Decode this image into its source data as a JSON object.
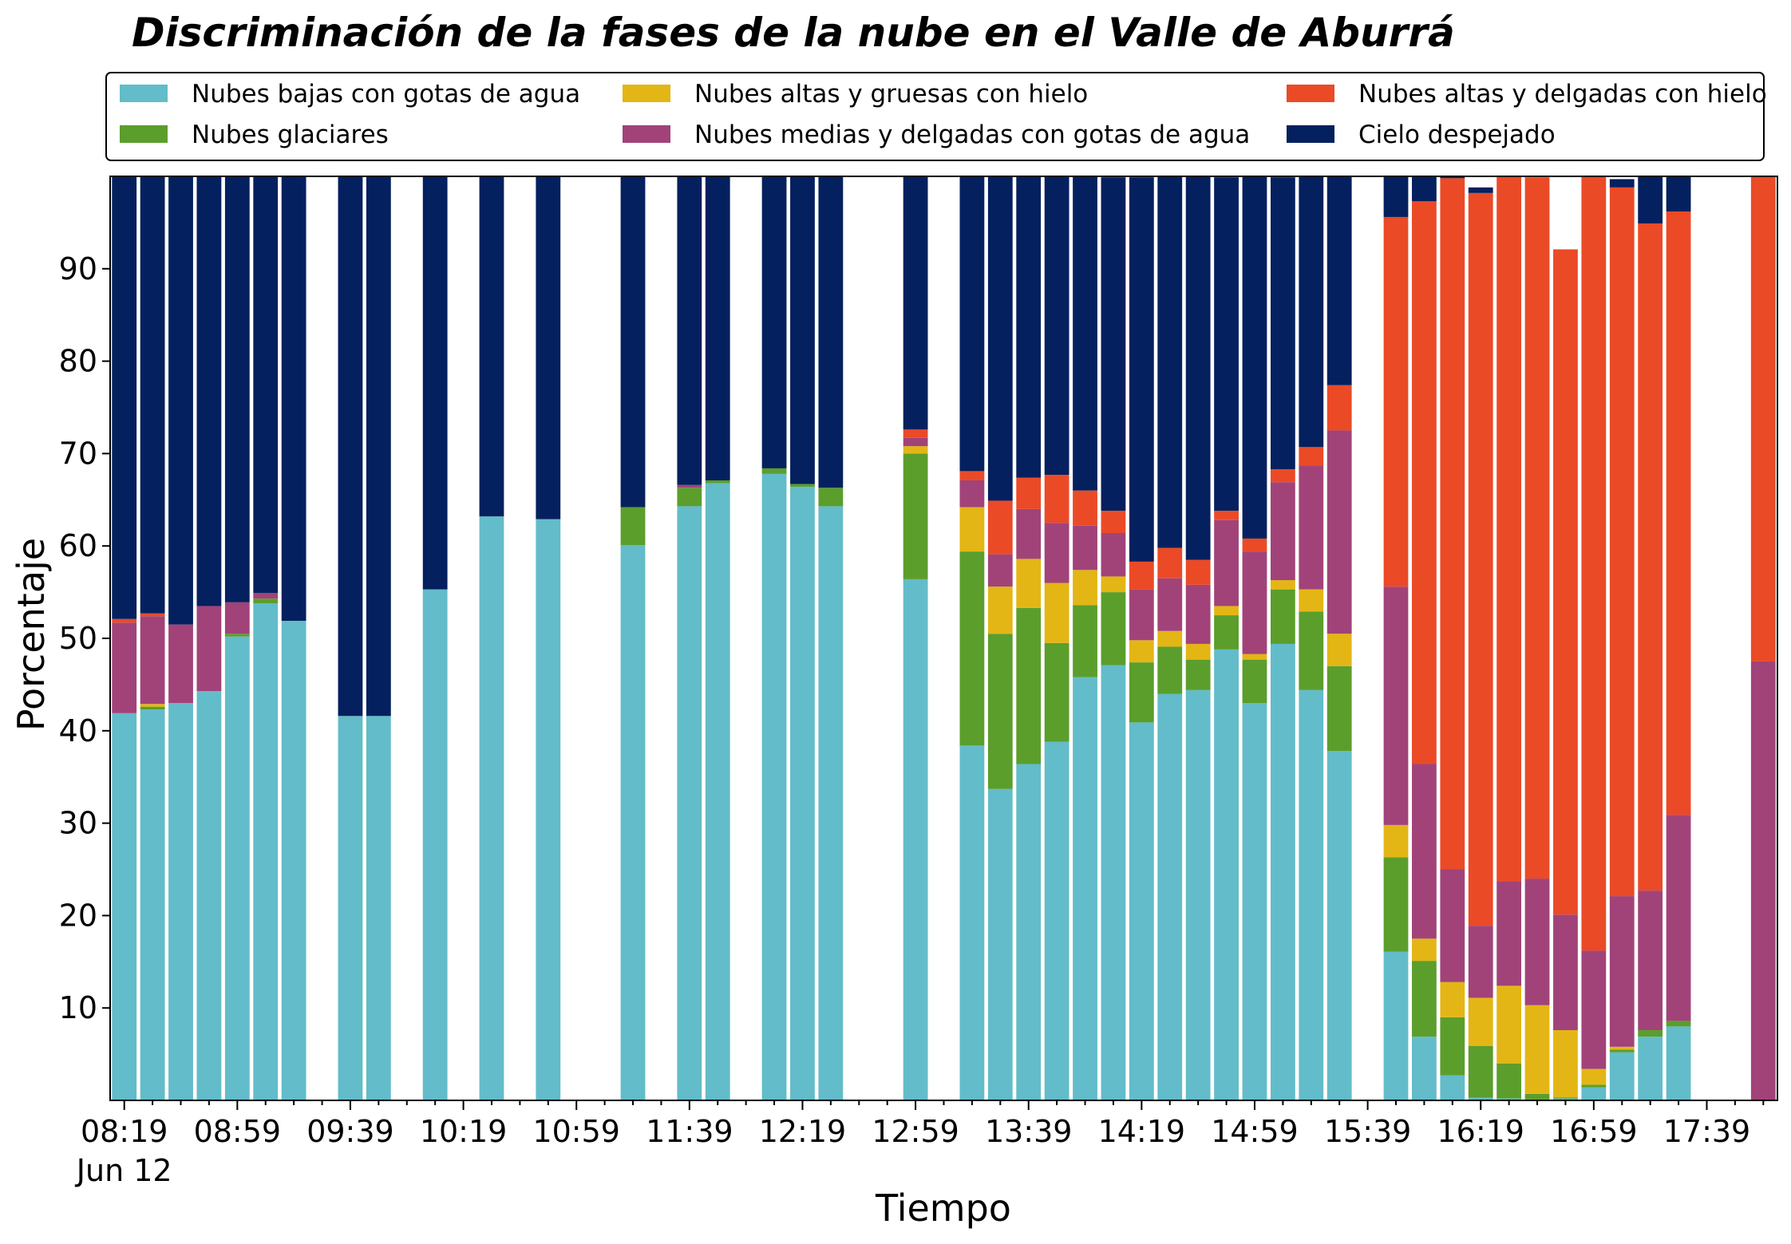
{
  "chart_data": {
    "type": "bar",
    "stacked": true,
    "title": "Discriminación de la fases de la nube en el Valle de Aburrá",
    "xlabel": "Tiempo",
    "ylabel": "Porcentaje",
    "ylim": [
      0,
      100
    ],
    "yticks": [
      10,
      20,
      30,
      40,
      50,
      60,
      70,
      80,
      90
    ],
    "grid": false,
    "legend_position": "top",
    "x_start": "08:19",
    "x_step_minutes": 10,
    "xtick_labels": [
      "08:19",
      "08:59",
      "09:39",
      "10:19",
      "10:59",
      "11:39",
      "12:19",
      "12:59",
      "13:39",
      "14:19",
      "14:59",
      "15:39",
      "16:19",
      "16:59",
      "17:39"
    ],
    "xtick_sublabel": "Jun 12",
    "series": [
      {
        "name": "Nubes bajas con gotas de agua",
        "color": "#63BCC9",
        "values": [
          41.9,
          42.3,
          43,
          44.3,
          50.2,
          53.8,
          51.9,
          null,
          41.6,
          41.6,
          null,
          55.3,
          null,
          63.2,
          null,
          62.9,
          null,
          null,
          60.1,
          null,
          64.3,
          66.8,
          null,
          67.8,
          66.4,
          64.3,
          null,
          null,
          56.4,
          null,
          38.4,
          33.7,
          36.4,
          38.8,
          45.8,
          47.1,
          40.9,
          44,
          44.4,
          48.8,
          43,
          49.4,
          44.4,
          37.8,
          null,
          16.1,
          6.9,
          2.7,
          0.3,
          0.2,
          0.1,
          0.2,
          1.4,
          5.2,
          6.9,
          8,
          null,
          null,
          0
        ]
      },
      {
        "name": "Nubes glaciares",
        "color": "#5B9E2C",
        "values": [
          0,
          0.3,
          0,
          0,
          0.3,
          0.5,
          0,
          null,
          0,
          0,
          null,
          0,
          null,
          0,
          null,
          0,
          null,
          null,
          4.1,
          null,
          2,
          0.3,
          null,
          0.6,
          0.3,
          2,
          null,
          null,
          13.6,
          null,
          21,
          16.8,
          16.9,
          10.7,
          7.8,
          7.9,
          6.5,
          5.1,
          3.3,
          3.7,
          4.7,
          5.9,
          8.5,
          9.2,
          null,
          10.2,
          8.2,
          6.3,
          5.6,
          3.8,
          0.6,
          0.1,
          0.3,
          0.3,
          0.7,
          0.6,
          null,
          null,
          0
        ]
      },
      {
        "name": "Nubes altas y gruesas con hielo",
        "color": "#E3B615",
        "values": [
          0,
          0.3,
          0,
          0,
          0,
          0,
          0,
          null,
          0,
          0,
          null,
          0,
          null,
          0,
          null,
          0,
          null,
          null,
          0,
          null,
          0,
          0,
          null,
          0,
          0,
          0,
          null,
          null,
          0.8,
          null,
          4.8,
          5.1,
          5.3,
          6.5,
          3.8,
          1.7,
          2.4,
          1.7,
          1.7,
          1,
          0.6,
          1,
          2.4,
          3.5,
          null,
          3.5,
          2.4,
          3.8,
          5.2,
          8.4,
          9.6,
          7.3,
          1.7,
          0.3,
          0,
          0,
          null,
          null,
          0
        ]
      },
      {
        "name": "Nubes medias y delgadas con gotas de agua",
        "color": "#A14379",
        "values": [
          9.8,
          9.5,
          8.5,
          9.2,
          3.4,
          0.6,
          0,
          null,
          0,
          0,
          null,
          0,
          null,
          0,
          null,
          0,
          null,
          null,
          0,
          null,
          0.3,
          0,
          null,
          0,
          0,
          0,
          null,
          null,
          0.9,
          null,
          2.9,
          3.5,
          5.4,
          6.5,
          4.8,
          4.7,
          5.5,
          5.7,
          6.4,
          9.3,
          11.1,
          10.6,
          13.4,
          22,
          null,
          25.8,
          18.9,
          12.2,
          7.8,
          11.3,
          13.7,
          12.5,
          12.8,
          16.3,
          15.1,
          22.3,
          null,
          null,
          47.5
        ]
      },
      {
        "name": "Nubes altas y delgadas con hielo",
        "color": "#EB4A27",
        "values": [
          0.4,
          0.3,
          0,
          0,
          0,
          0,
          0,
          null,
          0,
          0,
          null,
          0,
          null,
          0,
          null,
          0,
          null,
          null,
          0,
          null,
          0,
          0,
          null,
          0,
          0,
          0,
          null,
          null,
          0.9,
          null,
          1,
          5.8,
          3.4,
          5.2,
          3.8,
          2.4,
          3,
          3.3,
          2.7,
          1,
          1.4,
          1.4,
          2,
          4.9,
          null,
          40,
          60.9,
          74.8,
          79.3,
          76.3,
          75.9,
          72,
          84,
          76.7,
          72.2,
          65.3,
          null,
          null,
          52.5
        ]
      },
      {
        "name": "Cielo despejado",
        "color": "#05205E",
        "values": [
          47.9,
          47.3,
          48.5,
          46.5,
          46.1,
          45.1,
          48.1,
          null,
          58.4,
          58.4,
          null,
          44.7,
          null,
          36.8,
          null,
          37.1,
          null,
          null,
          35.8,
          null,
          33.4,
          32.9,
          null,
          31.6,
          33.3,
          33.7,
          null,
          null,
          27.4,
          null,
          31.9,
          35.1,
          32.6,
          32.3,
          34.1,
          36.1,
          41.6,
          40.2,
          41.6,
          36.1,
          39.2,
          31.6,
          29.3,
          22.6,
          null,
          4.4,
          2.7,
          0.2,
          0.6,
          0,
          0,
          0,
          0,
          0.9,
          5.2,
          3.8,
          null,
          null,
          0
        ]
      }
    ]
  }
}
